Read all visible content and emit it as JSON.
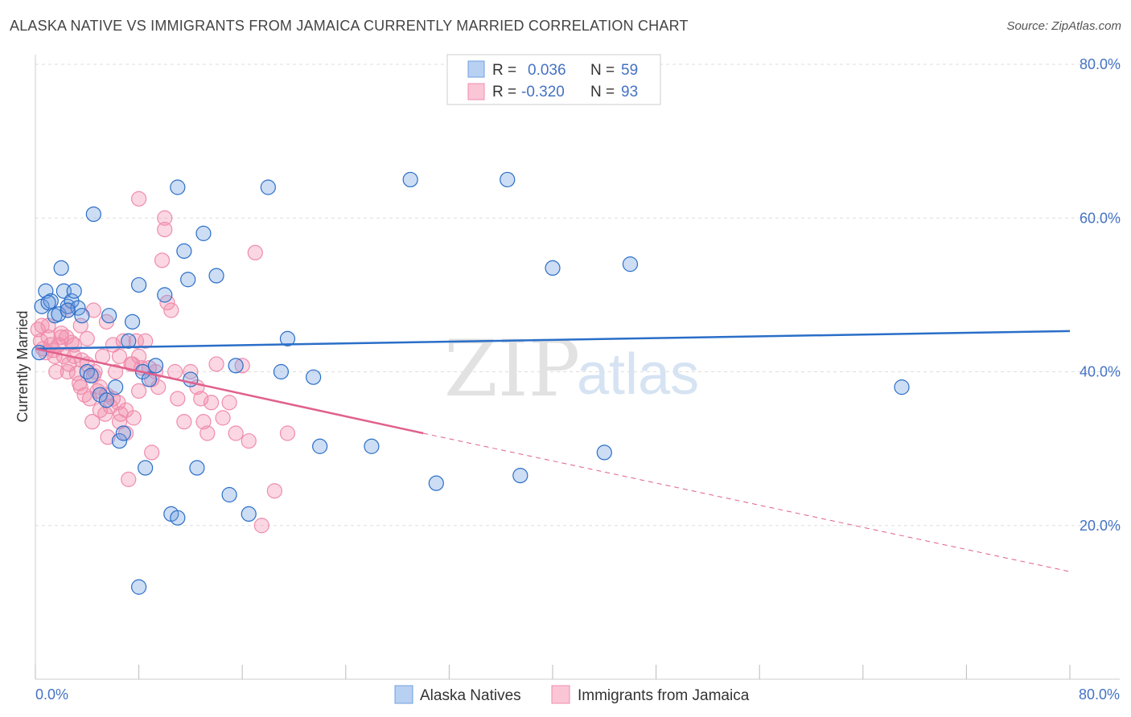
{
  "title": "ALASKA NATIVE VS IMMIGRANTS FROM JAMAICA CURRENTLY MARRIED CORRELATION CHART",
  "source": "Source: ZipAtlas.com",
  "watermark": {
    "zip": "ZIP",
    "atlas": "atlas"
  },
  "colors": {
    "blue": "#6f9fe0",
    "blue_line": "#2a6ec8",
    "pink": "#f08cac",
    "pink_line": "#e0608c",
    "grid": "#dddddd",
    "tick_text": "#4472c4"
  },
  "legend": {
    "rows": [
      {
        "r_label": "R =",
        "r_value": "0.036",
        "n_label": "N =",
        "n_value": "59"
      },
      {
        "r_label": "R =",
        "r_value": "-0.320",
        "n_label": "N =",
        "n_value": "93"
      }
    ]
  },
  "bottom_legend": [
    "Alaska Natives",
    "Immigrants from Jamaica"
  ],
  "chart_data": {
    "type": "scatter",
    "title": "ALASKA NATIVE VS IMMIGRANTS FROM JAMAICA CURRENTLY MARRIED CORRELATION CHART",
    "xlabel": "",
    "ylabel": "Currently Married",
    "xlim": [
      0,
      80
    ],
    "ylim": [
      0,
      80
    ],
    "x_tick_labels": [
      "0.0%",
      "80.0%"
    ],
    "y_tick_labels": [
      "20.0%",
      "40.0%",
      "60.0%",
      "80.0%"
    ],
    "y_ticks": [
      20,
      40,
      60,
      80
    ],
    "grid": true,
    "series": [
      {
        "name": "Alaska Natives",
        "r": 0.036,
        "n": 59,
        "trend": {
          "x0": 0,
          "y0": 43.0,
          "x1": 80,
          "y1": 45.3
        },
        "points": [
          [
            0.3,
            42.5
          ],
          [
            0.5,
            48.5
          ],
          [
            0.8,
            50.5
          ],
          [
            1.2,
            49.2
          ],
          [
            1.5,
            47.3
          ],
          [
            1.8,
            47.5
          ],
          [
            2.0,
            53.5
          ],
          [
            2.2,
            50.5
          ],
          [
            2.5,
            48.5
          ],
          [
            2.8,
            49.2
          ],
          [
            3.0,
            50.5
          ],
          [
            3.3,
            48.3
          ],
          [
            3.6,
            47.3
          ],
          [
            4.0,
            40.0
          ],
          [
            4.3,
            39.5
          ],
          [
            5.0,
            37.0
          ],
          [
            5.5,
            36.3
          ],
          [
            5.7,
            47.3
          ],
          [
            6.2,
            38.0
          ],
          [
            6.5,
            31.0
          ],
          [
            6.8,
            32.0
          ],
          [
            7.2,
            44.0
          ],
          [
            7.5,
            46.5
          ],
          [
            8.0,
            51.3
          ],
          [
            8.3,
            40.0
          ],
          [
            8.5,
            27.5
          ],
          [
            8.8,
            39.0
          ],
          [
            9.3,
            40.8
          ],
          [
            10.0,
            50.0
          ],
          [
            11.0,
            64.0
          ],
          [
            11.5,
            55.7
          ],
          [
            11.8,
            52.0
          ],
          [
            12.0,
            39.0
          ],
          [
            12.5,
            27.5
          ],
          [
            13.0,
            58.0
          ],
          [
            14.0,
            52.5
          ],
          [
            15.5,
            40.8
          ],
          [
            15.0,
            24.0
          ],
          [
            18.0,
            64.0
          ],
          [
            19.0,
            40.0
          ],
          [
            19.5,
            44.3
          ],
          [
            21.5,
            39.3
          ],
          [
            22.0,
            30.3
          ],
          [
            26.0,
            30.3
          ],
          [
            29.0,
            65.0
          ],
          [
            31.0,
            25.5
          ],
          [
            36.5,
            65.0
          ],
          [
            37.5,
            26.5
          ],
          [
            40.0,
            53.5
          ],
          [
            44.0,
            29.5
          ],
          [
            46.0,
            54.0
          ],
          [
            67.0,
            38.0
          ],
          [
            10.5,
            21.5
          ],
          [
            11.0,
            21.0
          ],
          [
            16.5,
            21.5
          ],
          [
            8.0,
            12.0
          ],
          [
            4.5,
            60.5
          ],
          [
            2.5,
            48.0
          ],
          [
            1.0,
            49.0
          ]
        ]
      },
      {
        "name": "Immigrants from Jamaica",
        "r": -0.32,
        "n": 93,
        "trend": {
          "x0": 0,
          "y0": 43.0,
          "x1": 30,
          "y1": 32.0,
          "dash_x1": 80,
          "dash_y1": 14.0
        },
        "points": [
          [
            0.2,
            45.5
          ],
          [
            0.4,
            44.0
          ],
          [
            0.6,
            43.0
          ],
          [
            0.8,
            42.5
          ],
          [
            1.0,
            44.5
          ],
          [
            1.2,
            43.5
          ],
          [
            1.4,
            42.8
          ],
          [
            1.6,
            40.0
          ],
          [
            1.8,
            43.5
          ],
          [
            2.0,
            45.0
          ],
          [
            2.2,
            42.0
          ],
          [
            2.4,
            44.5
          ],
          [
            2.6,
            41.0
          ],
          [
            2.8,
            43.8
          ],
          [
            3.0,
            42.0
          ],
          [
            3.2,
            39.8
          ],
          [
            3.4,
            38.5
          ],
          [
            3.6,
            41.5
          ],
          [
            3.8,
            37.0
          ],
          [
            4.0,
            44.3
          ],
          [
            4.2,
            36.5
          ],
          [
            4.4,
            33.5
          ],
          [
            4.6,
            40.0
          ],
          [
            4.8,
            37.5
          ],
          [
            5.0,
            35.0
          ],
          [
            5.2,
            42.0
          ],
          [
            5.4,
            34.5
          ],
          [
            5.6,
            31.5
          ],
          [
            5.8,
            35.5
          ],
          [
            6.0,
            43.5
          ],
          [
            6.2,
            40.0
          ],
          [
            6.4,
            36.0
          ],
          [
            6.6,
            34.5
          ],
          [
            6.8,
            44.0
          ],
          [
            7.0,
            32.0
          ],
          [
            7.2,
            26.0
          ],
          [
            7.4,
            41.0
          ],
          [
            7.6,
            34.0
          ],
          [
            7.8,
            44.0
          ],
          [
            8.0,
            42.0
          ],
          [
            8.2,
            40.5
          ],
          [
            8.5,
            44.0
          ],
          [
            8.8,
            40.5
          ],
          [
            9.0,
            29.5
          ],
          [
            9.3,
            40.0
          ],
          [
            9.5,
            38.0
          ],
          [
            9.8,
            54.5
          ],
          [
            10.0,
            58.5
          ],
          [
            10.2,
            49.0
          ],
          [
            10.5,
            48.0
          ],
          [
            10.8,
            40.0
          ],
          [
            11.0,
            36.5
          ],
          [
            11.5,
            33.5
          ],
          [
            12.0,
            40.0
          ],
          [
            12.5,
            38.0
          ],
          [
            12.8,
            36.5
          ],
          [
            13.0,
            33.5
          ],
          [
            13.3,
            32.0
          ],
          [
            13.6,
            36.0
          ],
          [
            14.0,
            41.0
          ],
          [
            14.5,
            34.0
          ],
          [
            15.0,
            36.0
          ],
          [
            15.5,
            32.0
          ],
          [
            16.0,
            40.8
          ],
          [
            16.5,
            31.0
          ],
          [
            17.0,
            55.5
          ],
          [
            17.5,
            20.0
          ],
          [
            18.5,
            24.5
          ],
          [
            19.5,
            32.0
          ],
          [
            8.0,
            62.5
          ],
          [
            10.0,
            60.0
          ],
          [
            2.5,
            48.0
          ],
          [
            3.5,
            46.0
          ],
          [
            4.5,
            48.0
          ],
          [
            5.5,
            46.5
          ],
          [
            6.5,
            42.0
          ],
          [
            1.0,
            46.0
          ],
          [
            2.0,
            44.5
          ],
          [
            3.0,
            43.5
          ],
          [
            4.0,
            41.0
          ],
          [
            5.0,
            38.0
          ],
          [
            6.0,
            36.5
          ],
          [
            7.0,
            35.0
          ],
          [
            8.0,
            37.5
          ],
          [
            9.0,
            39.0
          ],
          [
            0.5,
            46.0
          ],
          [
            1.5,
            42.0
          ],
          [
            2.5,
            40.0
          ],
          [
            3.5,
            38.0
          ],
          [
            4.5,
            39.5
          ],
          [
            5.5,
            37.0
          ],
          [
            6.5,
            33.5
          ],
          [
            7.5,
            41.0
          ]
        ]
      }
    ]
  }
}
